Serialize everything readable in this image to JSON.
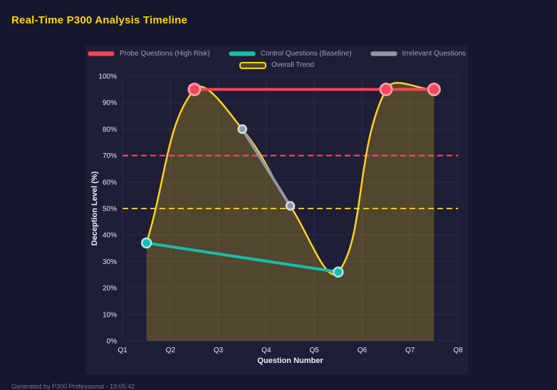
{
  "title": "Real-Time P300 Analysis Timeline",
  "footer": "Generated by P300 Professional - 19:05:42",
  "chart_data": {
    "type": "line",
    "title": "Real-Time P300 Analysis Timeline",
    "x_axis": {
      "label": "Question Number",
      "ticks": [
        "Q1",
        "Q2",
        "Q3",
        "Q4",
        "Q5",
        "Q6",
        "Q7",
        "Q8"
      ],
      "min": 1,
      "max": 8
    },
    "y_axis": {
      "label": "Deception Level (%)",
      "ticks": [
        "0%",
        "10%",
        "20%",
        "30%",
        "40%",
        "50%",
        "60%",
        "70%",
        "80%",
        "90%",
        "100%"
      ],
      "min": 0,
      "max": 100,
      "step": 10
    },
    "grid": {
      "on": true,
      "color": "#2b2b47"
    },
    "legend_position": "top",
    "legend_rows": [
      [
        0,
        1,
        2
      ],
      [
        3
      ]
    ],
    "series": [
      {
        "name": "Probe Questions (High Risk)",
        "color": "#f4465a",
        "point_border": "#ff9aa5",
        "point_border_width": 3,
        "point_radius": 8,
        "line_width": 4,
        "smooth": false,
        "points": [
          [
            2.5,
            95
          ],
          [
            6.5,
            95
          ],
          [
            7.5,
            95
          ]
        ]
      },
      {
        "name": "Control Questions (Baseline)",
        "color": "#17bdae",
        "point_border": "#a7ece4",
        "point_border_width": 2.5,
        "point_radius": 6.5,
        "line_width": 4,
        "smooth": false,
        "points": [
          [
            1.5,
            37
          ],
          [
            5.5,
            26
          ]
        ]
      },
      {
        "name": "Irrelevant Questions",
        "color": "#8f98a3",
        "point_border": "#d8dde2",
        "point_border_width": 2.5,
        "point_radius": 5.5,
        "line_width": 4,
        "smooth": false,
        "points": [
          [
            3.5,
            80
          ],
          [
            4.5,
            51
          ]
        ]
      },
      {
        "name": "Overall Trend",
        "color": "#ffd21f",
        "fill": "rgba(241,196,15,0.25)",
        "point_radius": 0,
        "line_width": 2.5,
        "smooth": true,
        "points": [
          [
            1.5,
            37
          ],
          [
            2.5,
            95
          ],
          [
            3.5,
            80
          ],
          [
            4.5,
            51
          ],
          [
            5.5,
            26
          ],
          [
            6.5,
            95
          ],
          [
            7.5,
            95
          ]
        ]
      }
    ],
    "thresholds": [
      {
        "value": 70,
        "color": "#ff4d6d"
      },
      {
        "value": 50,
        "color": "#f0c419"
      }
    ]
  }
}
